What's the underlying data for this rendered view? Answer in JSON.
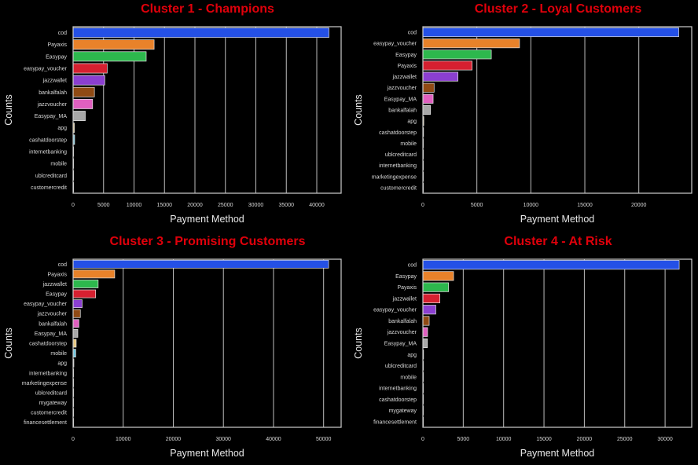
{
  "palette": [
    "#2450e6",
    "#e8822a",
    "#2db84d",
    "#d62030",
    "#8b3fd0",
    "#8f4a14",
    "#e060c0",
    "#a8a8a8",
    "#e8c880",
    "#70c8e0",
    "#c8c8c8",
    "#c8c8c8",
    "#c8c8c8",
    "#c8c8c8",
    "#c8c8c8",
    "#c8c8c8",
    "#c8c8c8"
  ],
  "chart_data": [
    {
      "type": "bar",
      "orientation": "horizontal",
      "title": "Cluster 1 - Champions",
      "xlabel": "Payment Method",
      "ylabel": "Counts",
      "xlim": [
        0,
        44000
      ],
      "xticks": [
        0,
        5000,
        10000,
        15000,
        20000,
        25000,
        30000,
        35000,
        40000
      ],
      "grid": true,
      "categories": [
        "cod",
        "Payaxis",
        "Easypay",
        "easypay_voucher",
        "jazzwallet",
        "bankalfalah",
        "jazzvoucher",
        "Easypay_MA",
        "apg",
        "cashatdoorstep",
        "internetbanking",
        "mobile",
        "ublcreditcard",
        "customercredit"
      ],
      "values": [
        42000,
        13300,
        12000,
        5600,
        5200,
        3500,
        3200,
        2000,
        200,
        250,
        50,
        30,
        20,
        10
      ]
    },
    {
      "type": "bar",
      "orientation": "horizontal",
      "title": "Cluster 2 - Loyal Customers",
      "xlabel": "Payment Method",
      "ylabel": "Counts",
      "xlim": [
        0,
        24900
      ],
      "xticks": [
        0,
        5000,
        10000,
        15000,
        20000
      ],
      "grid": true,
      "categories": [
        "cod",
        "easypay_voucher",
        "Easypay",
        "Payaxis",
        "jazzwallet",
        "jazzvoucher",
        "Easypay_MA",
        "bankalfalah",
        "apg",
        "cashatdoorstep",
        "mobile",
        "ublcreditcard",
        "internetbanking",
        "marketingexpense",
        "customercredit"
      ],
      "values": [
        23700,
        8950,
        6340,
        4560,
        3250,
        1040,
        950,
        700,
        80,
        60,
        20,
        15,
        10,
        5,
        5
      ]
    },
    {
      "type": "bar",
      "orientation": "horizontal",
      "title": "Cluster 3 - Promising Customers",
      "xlabel": "Payment Method",
      "ylabel": "Counts",
      "xlim": [
        0,
        53500
      ],
      "xticks": [
        0,
        10000,
        20000,
        30000,
        40000,
        50000
      ],
      "grid": true,
      "categories": [
        "cod",
        "Payaxis",
        "jazzwallet",
        "Easypay",
        "easypay_voucher",
        "jazzvoucher",
        "bankalfalah",
        "Easypay_MA",
        "cashatdoorstep",
        "mobile",
        "apg",
        "internetbanking",
        "marketingexpense",
        "ublcreditcard",
        "mygateway",
        "customercredit",
        "financesettlement"
      ],
      "values": [
        51000,
        8300,
        5000,
        4500,
        1800,
        1450,
        1150,
        940,
        620,
        520,
        150,
        40,
        30,
        20,
        15,
        10,
        5
      ]
    },
    {
      "type": "bar",
      "orientation": "horizontal",
      "title": "Cluster 4 - At Risk",
      "xlabel": "Payment Method",
      "ylabel": "Counts",
      "xlim": [
        0,
        33300
      ],
      "xticks": [
        0,
        5000,
        10000,
        15000,
        20000,
        25000,
        30000
      ],
      "grid": true,
      "categories": [
        "cod",
        "Easypay",
        "Payaxis",
        "jazzwallet",
        "easypay_voucher",
        "bankalfalah",
        "jazzvoucher",
        "Easypay_MA",
        "apg",
        "ublcreditcard",
        "mobile",
        "internetbanking",
        "cashatdoorstep",
        "mygateway",
        "financesettlement"
      ],
      "values": [
        31750,
        3800,
        3180,
        2100,
        1600,
        780,
        580,
        560,
        80,
        60,
        50,
        15,
        10,
        8,
        5
      ]
    }
  ]
}
